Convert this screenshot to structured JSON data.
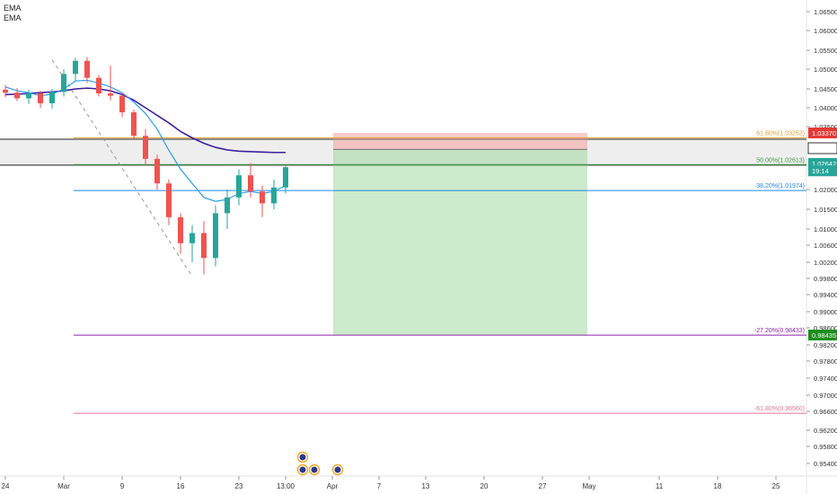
{
  "indicators": [
    "EMA",
    "EMA"
  ],
  "chart_data": {
    "type": "candlestick",
    "y_axis_ticks": [
      1.065,
      1.06,
      1.055,
      1.05,
      1.045,
      1.04,
      1.035,
      1.02,
      1.015,
      1.01,
      1.006,
      1.002,
      0.998,
      0.994,
      0.99,
      0.986,
      0.982,
      0.978,
      0.974,
      0.97,
      0.966,
      0.962,
      0.958,
      0.954
    ],
    "y_axis_labels": [
      "1.06500",
      "1.06000",
      "1.05500",
      "1.05000",
      "1.04500",
      "1.04000",
      "1.03500",
      "1.02000",
      "1.01500",
      "1.01000",
      "1.00600",
      "1.00200",
      "0.99800",
      "0.99400",
      "0.99000",
      "0.98600",
      "0.98200",
      "0.97800",
      "0.97400",
      "0.97000",
      "0.96600",
      "0.96200",
      "0.95800",
      "0.95400"
    ],
    "x_axis_labels": [
      {
        "label": "24",
        "idx": 0
      },
      {
        "label": "Mar",
        "idx": 5
      },
      {
        "label": "9",
        "idx": 10
      },
      {
        "label": "16",
        "idx": 15
      },
      {
        "label": "23",
        "idx": 20
      },
      {
        "label": "13:00",
        "idx": 24
      },
      {
        "label": "Apr",
        "idx": 28
      },
      {
        "label": "7",
        "idx": 32
      },
      {
        "label": "13",
        "idx": 36
      },
      {
        "label": "20",
        "idx": 41
      },
      {
        "label": "27",
        "idx": 46
      },
      {
        "label": "May",
        "idx": 50
      },
      {
        "label": "11",
        "idx": 56
      },
      {
        "label": "18",
        "idx": 61
      },
      {
        "label": "25",
        "idx": 66
      }
    ],
    "price_tags": [
      {
        "label": "1.03370",
        "value": 1.0337,
        "color": "#e53935",
        "text_color": "#ffffff"
      },
      {
        "label": "1.03000",
        "value": 1.03,
        "color": "#ffffff",
        "text_color": "#000000"
      },
      {
        "label": "1.02642",
        "value": 1.02642,
        "color": "#26a69a",
        "text_color": "#ffffff"
      },
      {
        "label": "19:14",
        "value": 1.0246,
        "color": "#26a69a",
        "text_color": "#ffffff"
      },
      {
        "label": "0.98435",
        "value": 0.98435,
        "color": "#1b8f1b",
        "text_color": "#ffffff"
      }
    ],
    "fib_levels": [
      {
        "label": "61.80%(1.03252)",
        "value": 1.03252,
        "color": "#e0a030"
      },
      {
        "label": "50.00%(1.02613)",
        "value": 1.02613,
        "color": "#43a047"
      },
      {
        "label": "38.20%(1.01974)",
        "value": 1.01974,
        "color": "#1e88e5"
      },
      {
        "label": "-27.20%(0.98433)",
        "value": 0.98433,
        "color": "#8e24aa"
      },
      {
        "label": "-61.80%(0.96560)",
        "value": 0.9656,
        "color": "#e57399"
      }
    ],
    "horizontal_lines": [
      1.03,
      1.026
    ],
    "trade": {
      "entry": 1.0297,
      "stop": 1.0337,
      "target": 0.98435,
      "start_idx": 27,
      "end_idx": 50
    },
    "candles": [
      {
        "o": 1.0448,
        "h": 1.046,
        "l": 1.0428,
        "c": 1.044
      },
      {
        "o": 1.044,
        "h": 1.0452,
        "l": 1.0418,
        "c": 1.0425
      },
      {
        "o": 1.0425,
        "h": 1.0448,
        "l": 1.041,
        "c": 1.0438
      },
      {
        "o": 1.0438,
        "h": 1.0445,
        "l": 1.04,
        "c": 1.0412
      },
      {
        "o": 1.0412,
        "h": 1.045,
        "l": 1.0398,
        "c": 1.0442
      },
      {
        "o": 1.0442,
        "h": 1.05,
        "l": 1.043,
        "c": 1.0488
      },
      {
        "o": 1.0488,
        "h": 1.053,
        "l": 1.047,
        "c": 1.0522
      },
      {
        "o": 1.0522,
        "h": 1.0532,
        "l": 1.0465,
        "c": 1.0478
      },
      {
        "o": 1.0478,
        "h": 1.0485,
        "l": 1.043,
        "c": 1.0438
      },
      {
        "o": 1.0438,
        "h": 1.051,
        "l": 1.042,
        "c": 1.0432
      },
      {
        "o": 1.0432,
        "h": 1.044,
        "l": 1.0375,
        "c": 1.0388
      },
      {
        "o": 1.0388,
        "h": 1.0395,
        "l": 1.032,
        "c": 1.033
      },
      {
        "o": 1.033,
        "h": 1.0345,
        "l": 1.026,
        "c": 1.0275
      },
      {
        "o": 1.0275,
        "h": 1.0285,
        "l": 1.02,
        "c": 1.0215
      },
      {
        "o": 1.0215,
        "h": 1.0225,
        "l": 1.011,
        "c": 1.013
      },
      {
        "o": 1.013,
        "h": 1.014,
        "l": 1.004,
        "c": 1.0065
      },
      {
        "o": 1.0065,
        "h": 1.011,
        "l": 1.002,
        "c": 1.009
      },
      {
        "o": 1.009,
        "h": 1.012,
        "l": 0.999,
        "c": 1.003
      },
      {
        "o": 1.003,
        "h": 1.016,
        "l": 1.001,
        "c": 1.014
      },
      {
        "o": 1.014,
        "h": 1.02,
        "l": 1.01,
        "c": 1.018
      },
      {
        "o": 1.018,
        "h": 1.025,
        "l": 1.016,
        "c": 1.0235
      },
      {
        "o": 1.0235,
        "h": 1.0265,
        "l": 1.018,
        "c": 1.0195
      },
      {
        "o": 1.0195,
        "h": 1.021,
        "l": 1.013,
        "c": 1.0165
      },
      {
        "o": 1.0165,
        "h": 1.0225,
        "l": 1.015,
        "c": 1.0205
      },
      {
        "o": 1.0205,
        "h": 1.026,
        "l": 1.019,
        "c": 1.0255
      }
    ],
    "ema_fast": [
      1.0455,
      1.0445,
      1.044,
      1.0432,
      1.0436,
      1.045,
      1.047,
      1.0472,
      1.0465,
      1.0455,
      1.044,
      1.0415,
      1.0385,
      1.0345,
      1.0295,
      1.025,
      1.0215,
      1.018,
      1.017,
      1.0175,
      1.019,
      1.0195,
      1.019,
      1.0195,
      1.021
    ],
    "ema_slow": [
      1.0435,
      1.0436,
      1.0438,
      1.044,
      1.0442,
      1.0445,
      1.045,
      1.0452,
      1.045,
      1.0445,
      1.0435,
      1.042,
      1.04,
      1.038,
      1.036,
      1.034,
      1.0325,
      1.0312,
      1.0302,
      1.0296,
      1.0293,
      1.0292,
      1.0291,
      1.029,
      1.029
    ],
    "trend_line": {
      "from": {
        "idx": 4,
        "value": 1.0525
      },
      "to": {
        "idx": 16,
        "value": 0.9985
      }
    },
    "event_markers": [
      {
        "idx": 25,
        "row": 0
      },
      {
        "idx": 25,
        "row": 1
      },
      {
        "idx": 26,
        "row": 1
      },
      {
        "idx": 28,
        "row": 1
      }
    ]
  }
}
